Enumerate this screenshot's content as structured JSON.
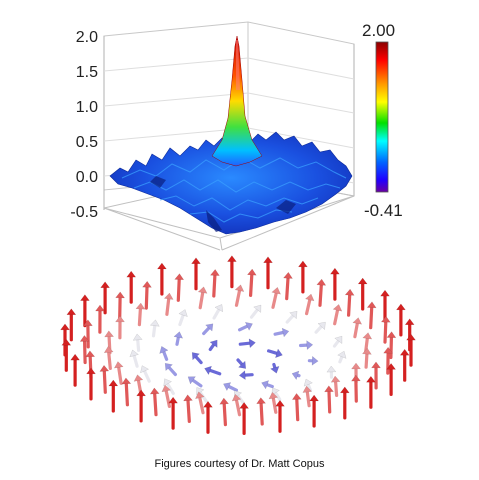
{
  "surface_plot": {
    "z_ticks": [
      "2.0",
      "1.5",
      "1.0",
      "0.5",
      "0.0",
      "-0.5"
    ],
    "colorbar": {
      "max_label": "2.00",
      "min_label": "-0.41",
      "stops": [
        "#8a0000",
        "#ff0000",
        "#ff9a00",
        "#ffff00",
        "#00e000",
        "#00ffff",
        "#0066ff",
        "#2000ff",
        "#6a00a0"
      ]
    },
    "surface_color": "#1f5fe0",
    "peak_colors": [
      "#d40000",
      "#ff6a00",
      "#ffff00",
      "#30e030",
      "#00c8ff"
    ]
  },
  "skyrmion": {
    "arrow_colors": {
      "outer": "#d42020",
      "mid": "#e88a8a",
      "white": "#e8e8ee",
      "center": "#6a6ad8"
    }
  },
  "caption": "Figures courtesy of Dr. Matt Copus"
}
